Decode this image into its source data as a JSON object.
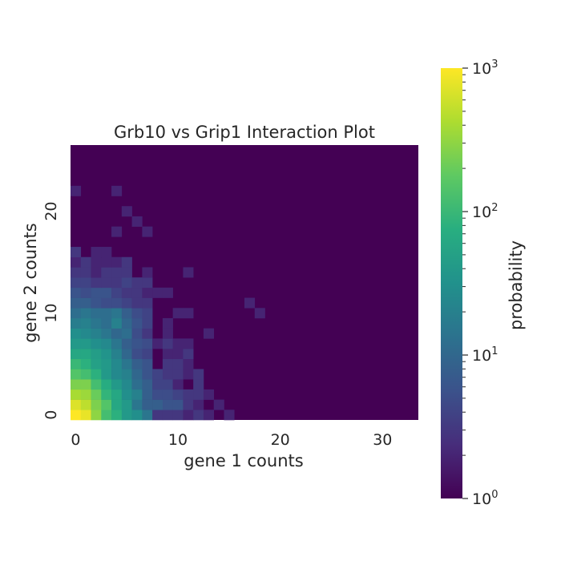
{
  "chart_data": {
    "type": "heatmap",
    "title": "Grb10 vs Grip1 Interaction Plot",
    "xlabel": "gene 1 counts",
    "ylabel": "gene 2 counts",
    "x_range": [
      0,
      33
    ],
    "y_range": [
      0,
      26
    ],
    "x_ticks": [
      0,
      10,
      20,
      30
    ],
    "y_ticks": [
      0,
      10,
      20
    ],
    "colormap": "viridis",
    "colorbar": {
      "label": "probability",
      "scale": "log",
      "range": [
        1,
        1000
      ],
      "tick_values": [
        1,
        10,
        100,
        1000
      ],
      "tick_labels": [
        {
          "base": "10",
          "exp": "0"
        },
        {
          "base": "10",
          "exp": "1"
        },
        {
          "base": "10",
          "exp": "2"
        },
        {
          "base": "10",
          "exp": "3"
        }
      ]
    },
    "default_value": 1,
    "cells": [
      [
        0,
        0,
        1000
      ],
      [
        1,
        0,
        800
      ],
      [
        2,
        0,
        300
      ],
      [
        3,
        0,
        120
      ],
      [
        4,
        0,
        80
      ],
      [
        5,
        0,
        40
      ],
      [
        6,
        0,
        30
      ],
      [
        7,
        0,
        15
      ],
      [
        8,
        0,
        3
      ],
      [
        9,
        0,
        3
      ],
      [
        10,
        0,
        3
      ],
      [
        11,
        0,
        2
      ],
      [
        12,
        0,
        3
      ],
      [
        13,
        0,
        2
      ],
      [
        15,
        0,
        2
      ],
      [
        0,
        1,
        700
      ],
      [
        1,
        1,
        500
      ],
      [
        2,
        1,
        250
      ],
      [
        3,
        1,
        150
      ],
      [
        4,
        1,
        60
      ],
      [
        5,
        1,
        40
      ],
      [
        6,
        1,
        15
      ],
      [
        7,
        1,
        8
      ],
      [
        8,
        1,
        8
      ],
      [
        9,
        1,
        6
      ],
      [
        10,
        1,
        6
      ],
      [
        11,
        1,
        3
      ],
      [
        12,
        1,
        2
      ],
      [
        14,
        1,
        2
      ],
      [
        0,
        2,
        400
      ],
      [
        1,
        2,
        350
      ],
      [
        2,
        2,
        200
      ],
      [
        3,
        2,
        90
      ],
      [
        4,
        2,
        60
      ],
      [
        5,
        2,
        30
      ],
      [
        6,
        2,
        20
      ],
      [
        7,
        2,
        8
      ],
      [
        8,
        2,
        5
      ],
      [
        9,
        2,
        5
      ],
      [
        10,
        2,
        4
      ],
      [
        11,
        2,
        3
      ],
      [
        12,
        2,
        3
      ],
      [
        13,
        2,
        2
      ],
      [
        0,
        3,
        250
      ],
      [
        1,
        3,
        250
      ],
      [
        2,
        3,
        120
      ],
      [
        3,
        3,
        70
      ],
      [
        4,
        3,
        40
      ],
      [
        5,
        3,
        25
      ],
      [
        6,
        3,
        12
      ],
      [
        7,
        3,
        8
      ],
      [
        8,
        3,
        4
      ],
      [
        9,
        3,
        4
      ],
      [
        10,
        3,
        2
      ],
      [
        12,
        3,
        3
      ],
      [
        0,
        4,
        150
      ],
      [
        1,
        4,
        120
      ],
      [
        2,
        4,
        80
      ],
      [
        3,
        4,
        40
      ],
      [
        4,
        4,
        25
      ],
      [
        5,
        4,
        20
      ],
      [
        6,
        4,
        10
      ],
      [
        7,
        4,
        6
      ],
      [
        8,
        4,
        4
      ],
      [
        9,
        4,
        3
      ],
      [
        10,
        4,
        3
      ],
      [
        11,
        4,
        2
      ],
      [
        12,
        4,
        3
      ],
      [
        0,
        5,
        100
      ],
      [
        1,
        5,
        80
      ],
      [
        2,
        5,
        50
      ],
      [
        3,
        5,
        40
      ],
      [
        4,
        5,
        25
      ],
      [
        5,
        5,
        15
      ],
      [
        6,
        5,
        8
      ],
      [
        7,
        5,
        6
      ],
      [
        9,
        5,
        3
      ],
      [
        10,
        5,
        3
      ],
      [
        11,
        5,
        2
      ],
      [
        0,
        6,
        60
      ],
      [
        1,
        6,
        60
      ],
      [
        2,
        6,
        45
      ],
      [
        3,
        6,
        35
      ],
      [
        4,
        6,
        20
      ],
      [
        5,
        6,
        10
      ],
      [
        6,
        6,
        5
      ],
      [
        7,
        6,
        4
      ],
      [
        9,
        6,
        2
      ],
      [
        10,
        6,
        2
      ],
      [
        11,
        6,
        3
      ],
      [
        0,
        7,
        40
      ],
      [
        1,
        7,
        40
      ],
      [
        2,
        7,
        30
      ],
      [
        3,
        7,
        25
      ],
      [
        4,
        7,
        15
      ],
      [
        5,
        7,
        8
      ],
      [
        6,
        7,
        6
      ],
      [
        7,
        7,
        5
      ],
      [
        8,
        7,
        2
      ],
      [
        9,
        7,
        3
      ],
      [
        10,
        7,
        2
      ],
      [
        11,
        7,
        2
      ],
      [
        0,
        8,
        30
      ],
      [
        1,
        8,
        25
      ],
      [
        2,
        8,
        20
      ],
      [
        3,
        8,
        15
      ],
      [
        4,
        8,
        10
      ],
      [
        5,
        8,
        12
      ],
      [
        6,
        8,
        5
      ],
      [
        7,
        8,
        3
      ],
      [
        9,
        8,
        2
      ],
      [
        13,
        8,
        2
      ],
      [
        0,
        9,
        18
      ],
      [
        1,
        9,
        20
      ],
      [
        2,
        9,
        15
      ],
      [
        3,
        9,
        12
      ],
      [
        4,
        9,
        20
      ],
      [
        5,
        9,
        10
      ],
      [
        6,
        9,
        6
      ],
      [
        7,
        9,
        4
      ],
      [
        9,
        9,
        2
      ],
      [
        0,
        10,
        12
      ],
      [
        1,
        10,
        15
      ],
      [
        2,
        10,
        12
      ],
      [
        3,
        10,
        12
      ],
      [
        4,
        10,
        15
      ],
      [
        5,
        10,
        8
      ],
      [
        6,
        10,
        5
      ],
      [
        7,
        10,
        4
      ],
      [
        10,
        10,
        2
      ],
      [
        11,
        10,
        2
      ],
      [
        18,
        10,
        2
      ],
      [
        0,
        11,
        8
      ],
      [
        1,
        11,
        8
      ],
      [
        2,
        11,
        6
      ],
      [
        3,
        11,
        5
      ],
      [
        4,
        11,
        5
      ],
      [
        5,
        11,
        4
      ],
      [
        6,
        11,
        3
      ],
      [
        7,
        11,
        3
      ],
      [
        17,
        11,
        2
      ],
      [
        0,
        12,
        6
      ],
      [
        1,
        12,
        5
      ],
      [
        2,
        12,
        6
      ],
      [
        3,
        12,
        6
      ],
      [
        4,
        12,
        4
      ],
      [
        5,
        12,
        3
      ],
      [
        6,
        12,
        3
      ],
      [
        7,
        12,
        2
      ],
      [
        8,
        12,
        2
      ],
      [
        9,
        12,
        2
      ],
      [
        0,
        13,
        4
      ],
      [
        1,
        13,
        4
      ],
      [
        2,
        13,
        3
      ],
      [
        3,
        13,
        3
      ],
      [
        4,
        13,
        3
      ],
      [
        5,
        13,
        4
      ],
      [
        6,
        13,
        3
      ],
      [
        7,
        13,
        3
      ],
      [
        0,
        14,
        3
      ],
      [
        1,
        14,
        3
      ],
      [
        2,
        14,
        2
      ],
      [
        3,
        14,
        3
      ],
      [
        4,
        14,
        3
      ],
      [
        5,
        14,
        3
      ],
      [
        7,
        14,
        2
      ],
      [
        11,
        14,
        2
      ],
      [
        0,
        15,
        2
      ],
      [
        1,
        15,
        3
      ],
      [
        2,
        15,
        2
      ],
      [
        3,
        15,
        2
      ],
      [
        4,
        15,
        2
      ],
      [
        5,
        15,
        3
      ],
      [
        0,
        16,
        3
      ],
      [
        2,
        16,
        2
      ],
      [
        3,
        16,
        2
      ],
      [
        4,
        18,
        2
      ],
      [
        7,
        18,
        2
      ],
      [
        6,
        19,
        2
      ],
      [
        5,
        20,
        2
      ],
      [
        0,
        22,
        2
      ],
      [
        4,
        22,
        2
      ]
    ]
  }
}
